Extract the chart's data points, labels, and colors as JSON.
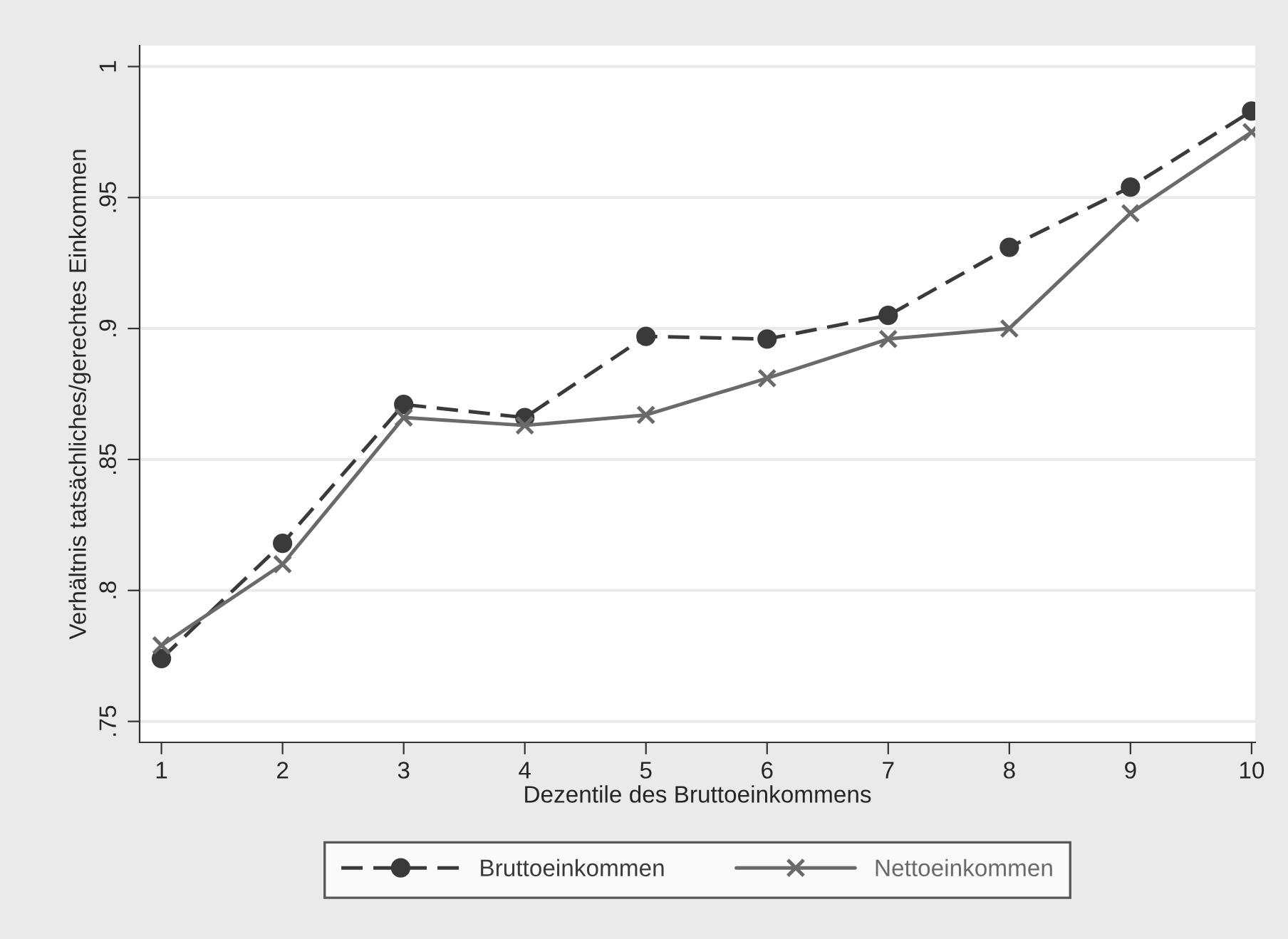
{
  "chart_data": {
    "type": "line",
    "xlabel": "Dezentile des Bruttoeinkommens",
    "ylabel": "Verhältnis tatsächliches/gerechtes Einkommen",
    "x": [
      1,
      2,
      3,
      4,
      5,
      6,
      7,
      8,
      9,
      10
    ],
    "series": [
      {
        "name": "Bruttoeinkommen",
        "color": "#3a3a3a",
        "marker": "circle",
        "line_style": "dashed",
        "values": [
          0.774,
          0.818,
          0.871,
          0.866,
          0.897,
          0.896,
          0.905,
          0.931,
          0.954,
          0.983
        ]
      },
      {
        "name": "Nettoeinkommen",
        "color": "#6a6a6a",
        "marker": "cross",
        "line_style": "solid",
        "values": [
          0.779,
          0.81,
          0.866,
          0.863,
          0.867,
          0.881,
          0.896,
          0.9,
          0.944,
          0.975
        ]
      }
    ],
    "xlim": [
      0.82,
      10.03
    ],
    "ylim": [
      0.742,
      1.008
    ],
    "xticks": [
      1,
      2,
      3,
      4,
      5,
      6,
      7,
      8,
      9,
      10
    ],
    "yticks": [
      {
        "value": 0.75,
        "label": ".75"
      },
      {
        "value": 0.8,
        "label": ".8"
      },
      {
        "value": 0.85,
        "label": ".85"
      },
      {
        "value": 0.9,
        "label": ".9"
      },
      {
        "value": 0.95,
        "label": ".95"
      },
      {
        "value": 1,
        "label": "1"
      }
    ],
    "grid": "y",
    "legend": "bottom"
  }
}
